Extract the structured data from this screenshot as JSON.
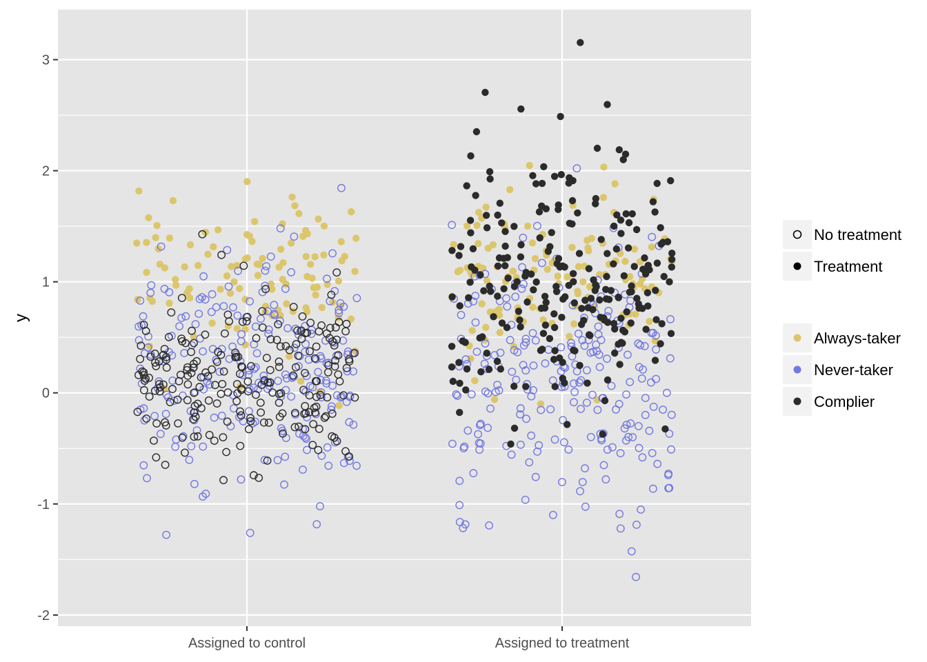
{
  "chart_data": {
    "type": "scatter",
    "jitter": true,
    "title": "",
    "xlabel": "",
    "ylabel": "y",
    "categories": [
      "Assigned to control",
      "Assigned to treatment"
    ],
    "ylim": [
      -2.1,
      3.45
    ],
    "yticks": [
      -2,
      -1,
      0,
      1,
      2,
      3
    ],
    "ytick_labels": [
      "-2",
      "-1",
      "0",
      "1",
      "2",
      "3"
    ],
    "grid": true,
    "legend_position": "right",
    "legend_shape": {
      "entries": [
        {
          "label": "No treatment",
          "shape": "open-circle"
        },
        {
          "label": "Treatment",
          "shape": "filled-circle"
        }
      ]
    },
    "legend_color": {
      "entries": [
        {
          "label": "Always-taker",
          "color": "#dcc66c"
        },
        {
          "label": "Never-taker",
          "color": "#7378e0"
        },
        {
          "label": "Complier",
          "color": "#2b2b2b"
        }
      ]
    },
    "colors": {
      "panel": "#e5e5e5",
      "grid": "#ffffff",
      "always_taker": "#dcc66c",
      "never_taker": "#7378e0",
      "complier": "#2b2b2b"
    },
    "groups": [
      {
        "category": "Assigned to control",
        "type": "Always-taker",
        "treated": true,
        "n": 110,
        "y_mean": 1.05,
        "y_sd": 0.42
      },
      {
        "category": "Assigned to control",
        "type": "Never-taker",
        "treated": false,
        "n": 230,
        "y_mean": 0.2,
        "y_sd": 0.55
      },
      {
        "category": "Assigned to control",
        "type": "Complier",
        "treated": false,
        "n": 230,
        "y_mean": 0.1,
        "y_sd": 0.4
      },
      {
        "category": "Assigned to treatment",
        "type": "Always-taker",
        "treated": true,
        "n": 120,
        "y_mean": 1.05,
        "y_sd": 0.42
      },
      {
        "category": "Assigned to treatment",
        "type": "Never-taker",
        "treated": false,
        "n": 230,
        "y_mean": 0.05,
        "y_sd": 0.6
      },
      {
        "category": "Assigned to treatment",
        "type": "Complier",
        "treated": true,
        "n": 240,
        "y_mean": 1.0,
        "y_sd": 0.62
      }
    ]
  }
}
